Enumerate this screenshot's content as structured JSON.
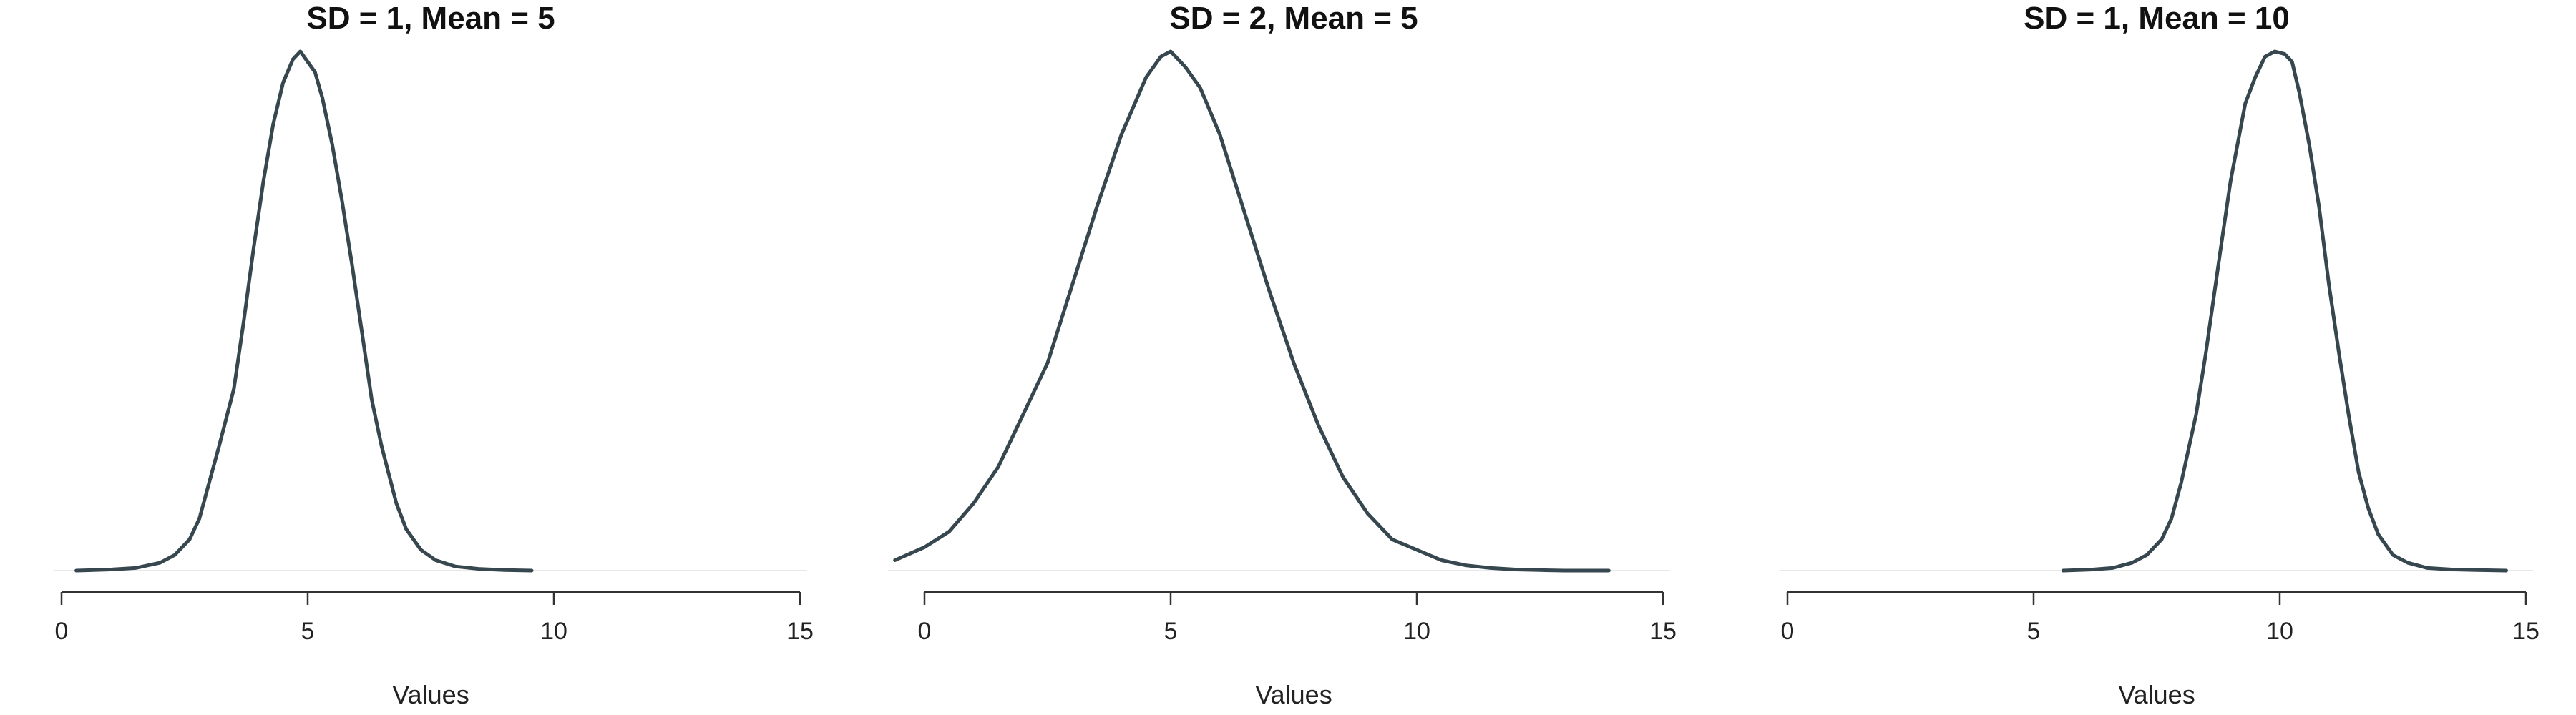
{
  "colors": {
    "line": "#37474f",
    "text": "#222222",
    "baseline": "#e8e8e8"
  },
  "chart_data": [
    {
      "type": "line",
      "title": "SD = 1, Mean = 5",
      "xlabel": "Values",
      "ylabel": "",
      "xlim": [
        0,
        15
      ],
      "x_ticks": [
        0,
        5,
        10,
        15
      ],
      "x_tick_labels": [
        "0",
        "5",
        "10",
        "15"
      ],
      "ylim": [
        0,
        1
      ],
      "grid": false,
      "series": [
        {
          "x": [
            0.3,
            1.0,
            1.5,
            2.0,
            2.3,
            2.6,
            2.8,
            3.0,
            3.2,
            3.5,
            3.7,
            3.9,
            4.1,
            4.3,
            4.5,
            4.7,
            4.85,
            5.0,
            5.15,
            5.3,
            5.5,
            5.7,
            5.9,
            6.1,
            6.3,
            6.5,
            6.8,
            7.0,
            7.3,
            7.6,
            8.0,
            8.5,
            9.0,
            9.55
          ],
          "y": [
            0.0,
            0.002,
            0.005,
            0.015,
            0.03,
            0.06,
            0.1,
            0.17,
            0.24,
            0.35,
            0.48,
            0.62,
            0.75,
            0.86,
            0.94,
            0.985,
            1.0,
            0.98,
            0.96,
            0.91,
            0.82,
            0.71,
            0.59,
            0.46,
            0.33,
            0.24,
            0.13,
            0.08,
            0.04,
            0.02,
            0.008,
            0.003,
            0.001,
            0.0
          ]
        }
      ]
    },
    {
      "type": "line",
      "title": "SD = 2, Mean = 5",
      "xlabel": "Values",
      "ylabel": "",
      "xlim": [
        0,
        15
      ],
      "x_ticks": [
        0,
        5,
        10,
        15
      ],
      "x_tick_labels": [
        "0",
        "5",
        "10",
        "15"
      ],
      "ylim": [
        0,
        1
      ],
      "grid": false,
      "series": [
        {
          "x": [
            -0.6,
            0.0,
            0.5,
            1.0,
            1.5,
            2.0,
            2.5,
            3.0,
            3.5,
            4.0,
            4.5,
            4.8,
            5.0,
            5.3,
            5.6,
            6.0,
            6.5,
            7.0,
            7.5,
            8.0,
            8.5,
            9.0,
            9.5,
            10.0,
            10.5,
            11.0,
            11.5,
            12.0,
            12.5,
            13.0,
            13.9
          ],
          "y": [
            0.02,
            0.045,
            0.075,
            0.13,
            0.2,
            0.3,
            0.4,
            0.55,
            0.7,
            0.84,
            0.95,
            0.99,
            1.0,
            0.97,
            0.93,
            0.84,
            0.69,
            0.54,
            0.4,
            0.28,
            0.18,
            0.11,
            0.06,
            0.04,
            0.02,
            0.01,
            0.005,
            0.002,
            0.001,
            0.0,
            0.0
          ]
        }
      ]
    },
    {
      "type": "line",
      "title": "SD = 1, Mean = 10",
      "xlabel": "Values",
      "ylabel": "",
      "xlim": [
        0,
        15
      ],
      "x_ticks": [
        0,
        5,
        10,
        15
      ],
      "x_tick_labels": [
        "0",
        "5",
        "10",
        "15"
      ],
      "ylim": [
        0,
        1
      ],
      "grid": false,
      "series": [
        {
          "x": [
            5.6,
            6.2,
            6.6,
            7.0,
            7.3,
            7.6,
            7.8,
            8.0,
            8.3,
            8.5,
            8.8,
            9.0,
            9.3,
            9.5,
            9.7,
            9.9,
            10.1,
            10.25,
            10.4,
            10.6,
            10.8,
            11.0,
            11.2,
            11.4,
            11.6,
            11.8,
            12.0,
            12.3,
            12.6,
            13.0,
            13.5,
            14.0,
            14.6
          ],
          "y": [
            0.0,
            0.002,
            0.005,
            0.015,
            0.03,
            0.06,
            0.1,
            0.17,
            0.3,
            0.42,
            0.62,
            0.75,
            0.9,
            0.95,
            0.99,
            1.0,
            0.995,
            0.98,
            0.92,
            0.82,
            0.7,
            0.55,
            0.42,
            0.3,
            0.19,
            0.12,
            0.07,
            0.03,
            0.015,
            0.005,
            0.002,
            0.001,
            0.0
          ]
        }
      ]
    }
  ]
}
